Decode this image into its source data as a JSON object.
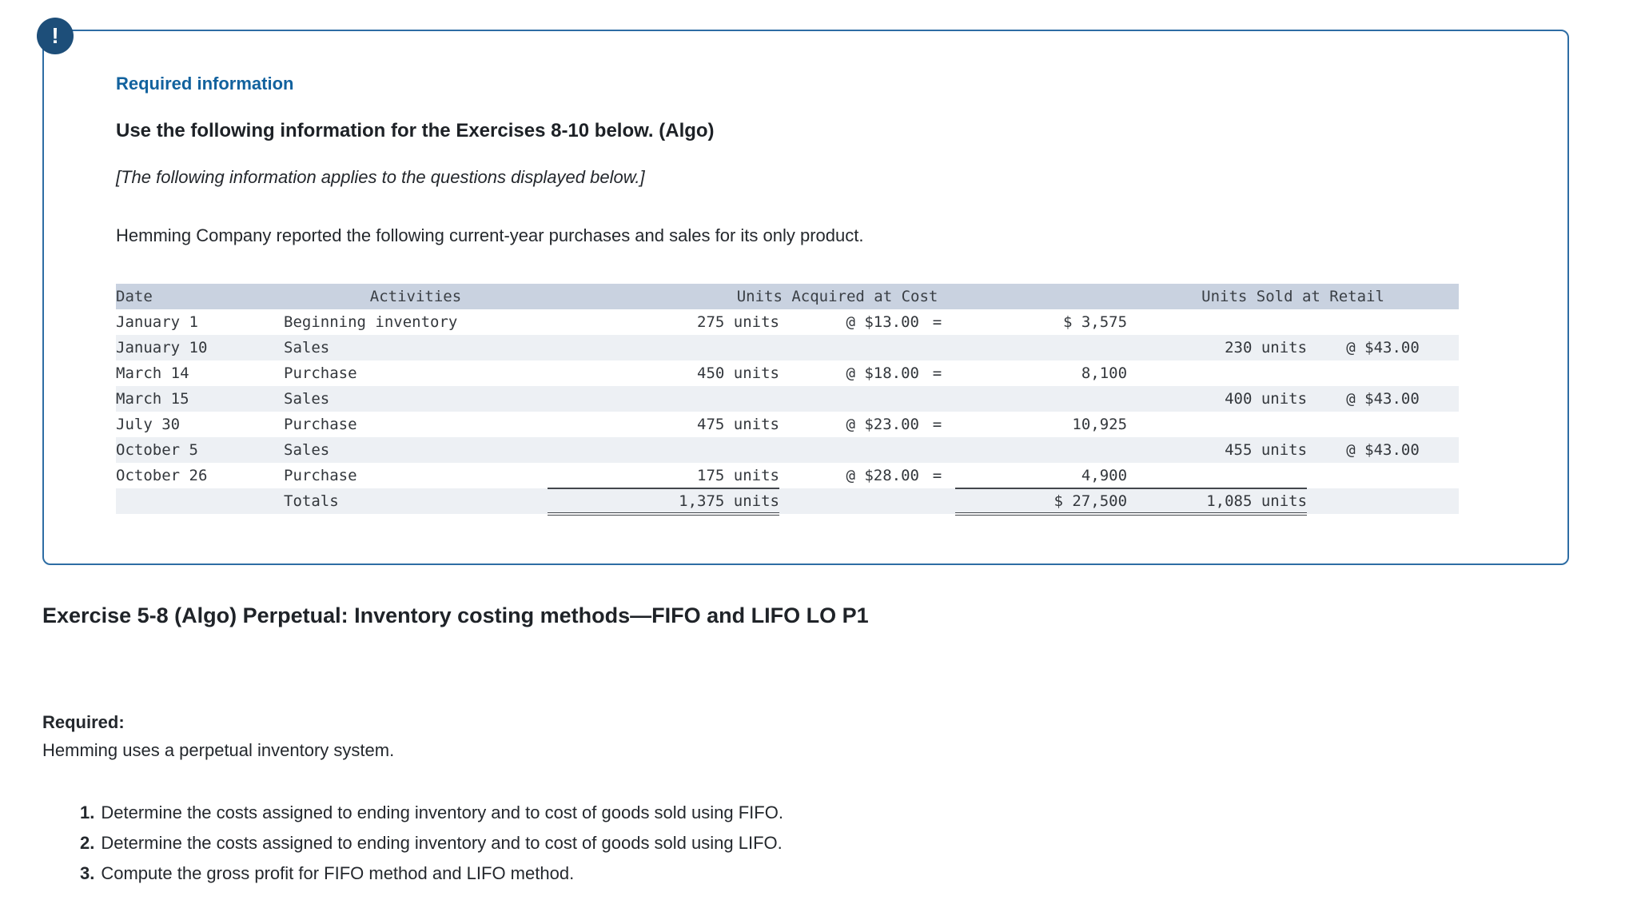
{
  "notice": {
    "badge": "!",
    "required_info_label": "Required information",
    "title": "Use the following information for the Exercises 8-10 below. (Algo)",
    "subtitle": "[The following information applies to the questions displayed below.]",
    "intro": "Hemming Company reported the following current-year purchases and sales for its only product."
  },
  "table": {
    "headers": {
      "date": "Date",
      "activities": "Activities",
      "acquired": "Units Acquired at Cost",
      "sold": "Units Sold at Retail"
    },
    "rows": [
      {
        "date": "January 1",
        "activity": "Beginning inventory",
        "qty": "275 units",
        "price": "@ $13.00",
        "eq": "=",
        "cost": "$ 3,575",
        "sold_qty": "",
        "retail": ""
      },
      {
        "date": "January 10",
        "activity": "Sales",
        "qty": "",
        "price": "",
        "eq": "",
        "cost": "",
        "sold_qty": "230 units",
        "retail": "@ $43.00"
      },
      {
        "date": "March 14",
        "activity": "Purchase",
        "qty": "450 units",
        "price": "@ $18.00",
        "eq": "=",
        "cost": "8,100",
        "sold_qty": "",
        "retail": ""
      },
      {
        "date": "March 15",
        "activity": "Sales",
        "qty": "",
        "price": "",
        "eq": "",
        "cost": "",
        "sold_qty": "400 units",
        "retail": "@ $43.00"
      },
      {
        "date": "July 30",
        "activity": "Purchase",
        "qty": "475 units",
        "price": "@ $23.00",
        "eq": "=",
        "cost": "10,925",
        "sold_qty": "",
        "retail": ""
      },
      {
        "date": "October 5",
        "activity": "Sales",
        "qty": "",
        "price": "",
        "eq": "",
        "cost": "",
        "sold_qty": "455 units",
        "retail": "@ $43.00"
      },
      {
        "date": "October 26",
        "activity": "Purchase",
        "qty": "175 units",
        "price": "@ $28.00",
        "eq": "=",
        "cost": "4,900",
        "sold_qty": "",
        "retail": ""
      },
      {
        "date": "",
        "activity": "Totals",
        "qty": "1,375 units",
        "price": "",
        "eq": "",
        "cost": "$ 27,500",
        "sold_qty": "1,085 units",
        "retail": ""
      }
    ]
  },
  "exercise": {
    "heading": "Exercise 5-8 (Algo) Perpetual: Inventory costing methods—FIFO and LIFO LO P1",
    "required_label": "Required:",
    "required_text": "Hemming uses a perpetual inventory system.",
    "items": [
      {
        "num": "1.",
        "text": "Determine the costs assigned to ending inventory and to cost of goods sold using FIFO."
      },
      {
        "num": "2.",
        "text": "Determine the costs assigned to ending inventory and to cost of goods sold using LIFO."
      },
      {
        "num": "3.",
        "text": "Compute the gross profit for FIFO method and LIFO method."
      }
    ]
  }
}
